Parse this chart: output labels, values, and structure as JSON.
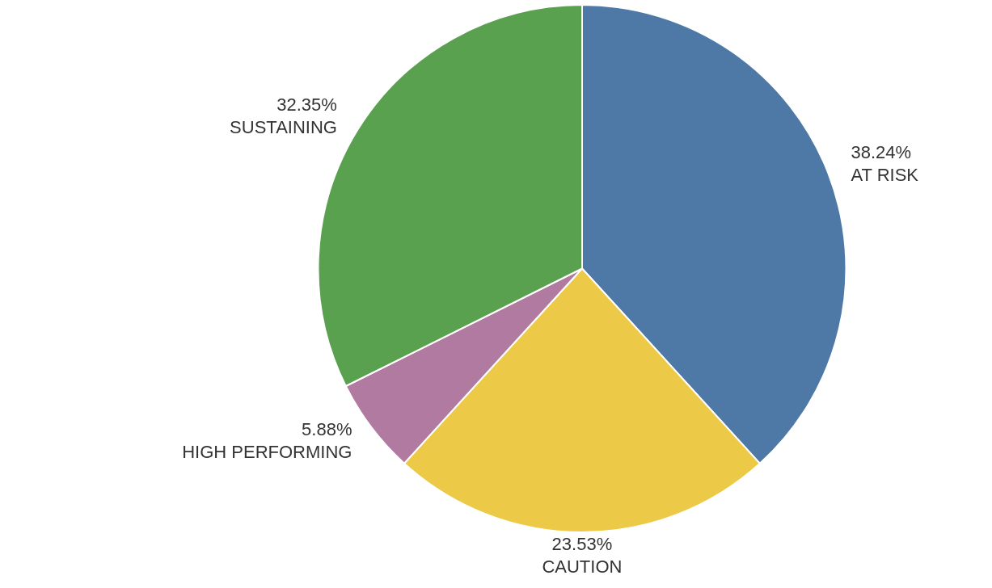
{
  "chart_data": {
    "type": "pie",
    "categories": [
      "AT RISK",
      "CAUTION",
      "HIGH PERFORMING",
      "SUSTAINING"
    ],
    "values": [
      38.24,
      23.53,
      5.88,
      32.35
    ],
    "colors": [
      "#4e79a7",
      "#edc948",
      "#b07aa1",
      "#59a14f"
    ],
    "value_labels": [
      "38.24%",
      "23.53%",
      "5.88%",
      "32.35%"
    ],
    "legend": false
  }
}
